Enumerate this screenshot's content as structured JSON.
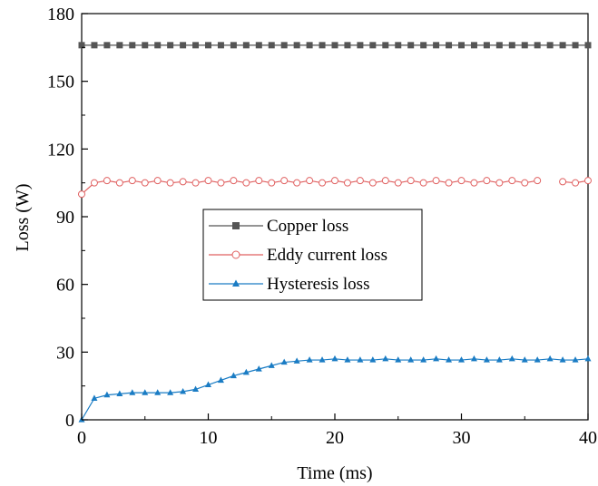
{
  "chart_data": {
    "type": "line",
    "xlabel": "Time (ms)",
    "ylabel": "Loss (W)",
    "xlim": [
      0,
      40
    ],
    "ylim": [
      0,
      180
    ],
    "x_ticks": [
      0,
      10,
      20,
      30,
      40
    ],
    "y_ticks": [
      0,
      30,
      60,
      90,
      120,
      150,
      180
    ],
    "x_tick_labels": [
      "0",
      "10",
      "20",
      "30",
      "40"
    ],
    "y_tick_labels": [
      "0",
      "30",
      "60",
      "90",
      "120",
      "150",
      "180"
    ],
    "grid": false,
    "legend_placement": "center",
    "series": [
      {
        "name": "Copper loss",
        "color": "#555555",
        "marker": "square",
        "x": [
          0,
          1,
          2,
          3,
          4,
          5,
          6,
          7,
          8,
          9,
          10,
          11,
          12,
          13,
          14,
          15,
          16,
          17,
          18,
          19,
          20,
          21,
          22,
          23,
          24,
          25,
          26,
          27,
          28,
          29,
          30,
          31,
          32,
          33,
          34,
          35,
          36,
          37,
          38,
          39,
          40
        ],
        "values": [
          166,
          166,
          166,
          166,
          166,
          166,
          166,
          166,
          166,
          166,
          166,
          166,
          166,
          166,
          166,
          166,
          166,
          166,
          166,
          166,
          166,
          166,
          166,
          166,
          166,
          166,
          166,
          166,
          166,
          166,
          166,
          166,
          166,
          166,
          166,
          166,
          166,
          166,
          166,
          166,
          166
        ]
      },
      {
        "name": "Eddy current loss",
        "color": "#e06060",
        "marker": "circle",
        "x": [
          0,
          1,
          2,
          3,
          4,
          5,
          6,
          7,
          8,
          9,
          10,
          11,
          12,
          13,
          14,
          15,
          16,
          17,
          18,
          19,
          20,
          21,
          22,
          23,
          24,
          25,
          26,
          27,
          28,
          29,
          30,
          31,
          32,
          33,
          34,
          35,
          36,
          37,
          38,
          39,
          40
        ],
        "values": [
          100,
          105,
          106,
          105,
          106,
          105,
          106,
          105,
          105.5,
          105,
          106,
          105,
          106,
          105,
          106,
          105,
          106,
          105,
          106,
          105,
          106,
          105,
          106,
          105,
          106,
          105,
          106,
          105,
          106,
          105,
          106,
          105,
          106,
          105,
          106,
          105,
          106,
          null,
          105.5,
          105,
          106
        ]
      },
      {
        "name": "Hysteresis loss",
        "color": "#1a7cc4",
        "marker": "triangle",
        "x": [
          0,
          1,
          2,
          3,
          4,
          5,
          6,
          7,
          8,
          9,
          10,
          11,
          12,
          13,
          14,
          15,
          16,
          17,
          18,
          19,
          20,
          21,
          22,
          23,
          24,
          25,
          26,
          27,
          28,
          29,
          30,
          31,
          32,
          33,
          34,
          35,
          36,
          37,
          38,
          39,
          40
        ],
        "values": [
          0,
          9.5,
          11,
          11.5,
          12,
          12,
          12,
          12,
          12.5,
          13.5,
          15.5,
          17.5,
          19.5,
          21,
          22.5,
          24,
          25.5,
          26,
          26.5,
          26.5,
          27,
          26.5,
          26.5,
          26.5,
          27,
          26.5,
          26.5,
          26.5,
          27,
          26.5,
          26.5,
          27,
          26.5,
          26.5,
          27,
          26.5,
          26.5,
          27,
          26.5,
          26.5,
          27
        ]
      }
    ]
  }
}
